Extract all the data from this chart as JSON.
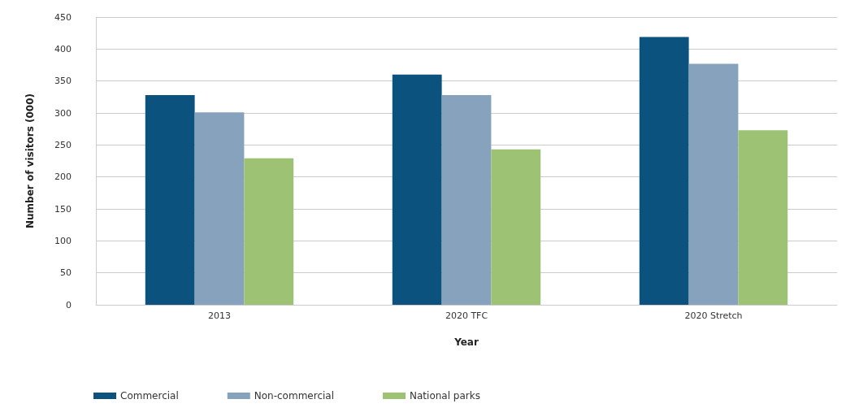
{
  "chart_data": {
    "type": "bar",
    "xlabel": "Year",
    "ylabel": "Number of visitors (000)",
    "categories": [
      "2013",
      "2020 TFC",
      "2020 Stretch"
    ],
    "series": [
      {
        "name": "Commercial",
        "color": "#0b527e",
        "values": [
          328,
          360,
          419
        ]
      },
      {
        "name": "Non-commercial",
        "color": "#87a2bd",
        "values": [
          301,
          328,
          377
        ]
      },
      {
        "name": "National parks",
        "color": "#9dc273",
        "values": [
          229,
          243,
          273
        ]
      }
    ],
    "ylim": [
      0,
      450
    ],
    "yticks": [
      0,
      50,
      100,
      150,
      200,
      250,
      300,
      350,
      400,
      450
    ],
    "grid": "y",
    "legend": "bottom left"
  }
}
